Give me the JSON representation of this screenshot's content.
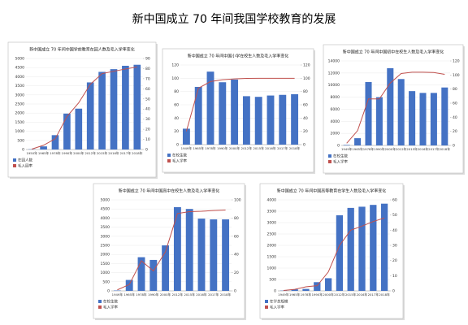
{
  "header": {
    "title": "新中国成立 70 年间我国学校教育的发展"
  },
  "chart_data": [
    {
      "type": "bar",
      "title": "新中国成立 70 年间中国学前教育在园人数及毛入学率变化",
      "categories": [
        "1950年",
        "1965年",
        "1978年",
        "1990年",
        "2000年",
        "2012年",
        "2015年",
        "2016年",
        "2017年",
        "2018年"
      ],
      "series": [
        {
          "name": "在园人数",
          "type": "bar",
          "color": "#4472c4",
          "values": [
            14,
            171,
            788,
            1972,
            2244,
            3686,
            4265,
            4414,
            4600,
            4656
          ]
        },
        {
          "name": "毛入园率",
          "type": "line",
          "axis": "y2",
          "color": "#c0504d",
          "values": [
            0.4,
            4.2,
            10.6,
            32.6,
            46.1,
            64.5,
            75.0,
            77.4,
            79.6,
            81.7
          ]
        }
      ],
      "ylim": [
        0,
        5000
      ],
      "yticks": [
        0,
        500,
        1000,
        1500,
        2000,
        2500,
        3000,
        3500,
        4000,
        4500,
        5000
      ],
      "y2lim": [
        0,
        90
      ],
      "y2ticks": [
        0,
        10,
        20,
        30,
        40,
        50,
        60,
        70,
        80,
        90
      ]
    },
    {
      "type": "bar",
      "title": "新中国成立 70 年间中国小学在校生人数及毛入学率变化",
      "categories": [
        "1949年",
        "1965年",
        "1978年",
        "1990年",
        "2000年",
        "2012年",
        "2015年",
        "2016年",
        "2017年",
        "2018年"
      ],
      "series": [
        {
          "name": "在校生数",
          "type": "bar",
          "color": "#4472c4",
          "values": [
            24,
            87,
            110,
            94,
            98,
            73,
            72,
            74,
            75,
            76
          ]
        },
        {
          "name": "毛入学率",
          "type": "line",
          "axis": "y2",
          "color": "#c0504d",
          "values": [
            20,
            85,
            95,
            97.8,
            99.1,
            99.85,
            99.9,
            99.9,
            99.9,
            99.95
          ]
        }
      ],
      "ylim": [
        0,
        120
      ],
      "yticks": [
        0,
        20,
        40,
        60,
        80,
        100,
        120
      ],
      "y2lim": [
        0,
        120
      ],
      "y2ticks": [
        0,
        20,
        40,
        60,
        80,
        100,
        120
      ]
    },
    {
      "type": "bar",
      "title": "新中国成立 70 年间中国初中在校生人数及毛入学率变化",
      "categories": [
        "1949年",
        "1965年",
        "1978年",
        "1990年",
        "2000年",
        "2012年",
        "2015年",
        "2016年",
        "2017年",
        "2018年"
      ],
      "series": [
        {
          "name": "在校生数",
          "type": "bar",
          "color": "#4472c4",
          "values": [
            83,
            1200,
            10500,
            8000,
            12800,
            11000,
            9000,
            8700,
            8700,
            9600
          ]
        },
        {
          "name": "毛入学率",
          "type": "line",
          "axis": "y2",
          "color": "#c0504d",
          "values": [
            3.1,
            21,
            66,
            66,
            88.6,
            102.1,
            104,
            104,
            103.5,
            100.9
          ]
        }
      ],
      "ylim": [
        0,
        14000
      ],
      "yticks": [
        0,
        2000,
        4000,
        6000,
        8000,
        10000,
        12000,
        14000
      ],
      "y2lim": [
        0,
        120
      ],
      "y2ticks": [
        0,
        20,
        40,
        60,
        80,
        100,
        120
      ]
    },
    {
      "type": "bar",
      "title": "新中国成立 70 年间中国高中在校生人数及毛入学率变化",
      "categories": [
        "1949年",
        "1965年",
        "1978年",
        "1990年",
        "2000年",
        "2012年",
        "2015年",
        "2016年",
        "2017年",
        "2018年"
      ],
      "series": [
        {
          "name": "在校生数",
          "type": "bar",
          "color": "#4472c4",
          "values": [
            20,
            600,
            1850,
            1700,
            2500,
            4600,
            4500,
            3970,
            3930,
            3930
          ]
        },
        {
          "name": "毛入学率",
          "type": "line",
          "axis": "y2",
          "color": "#c0504d",
          "values": [
            1.1,
            7,
            33,
            21.9,
            42.8,
            85,
            87,
            87.5,
            88.3,
            88.8
          ]
        }
      ],
      "ylim": [
        0,
        5000
      ],
      "yticks": [
        0,
        500,
        1000,
        1500,
        2000,
        2500,
        3000,
        3500,
        4000,
        4500,
        5000
      ],
      "y2lim": [
        0,
        100
      ],
      "y2ticks": [
        0,
        20,
        40,
        60,
        80,
        100
      ]
    },
    {
      "type": "bar",
      "title": "新中国成立 70 年间中国高等教育在学生人数及毛入学率变化",
      "categories": [
        "1949年",
        "1965年",
        "1978年",
        "1990年",
        "2000年",
        "2012年",
        "2015年",
        "2016年",
        "2017年",
        "2018年"
      ],
      "series": [
        {
          "name": "在学总规模",
          "type": "bar",
          "color": "#4472c4",
          "values": [
            12,
            67,
            86,
            383,
            556,
            3325,
            3647,
            3699,
            3779,
            3833
          ]
        },
        {
          "name": "毛入学率",
          "type": "line",
          "axis": "y2",
          "color": "#c0504d",
          "values": [
            0.26,
            1,
            2.7,
            3.4,
            12.5,
            30,
            40,
            42.7,
            45.7,
            48.1
          ]
        }
      ],
      "ylim": [
        0,
        4000
      ],
      "yticks": [
        0,
        500,
        1000,
        1500,
        2000,
        2500,
        3000,
        3500,
        4000
      ],
      "y2lim": [
        0,
        60
      ],
      "y2ticks": [
        0,
        10,
        20,
        30,
        40,
        50,
        60
      ]
    }
  ]
}
